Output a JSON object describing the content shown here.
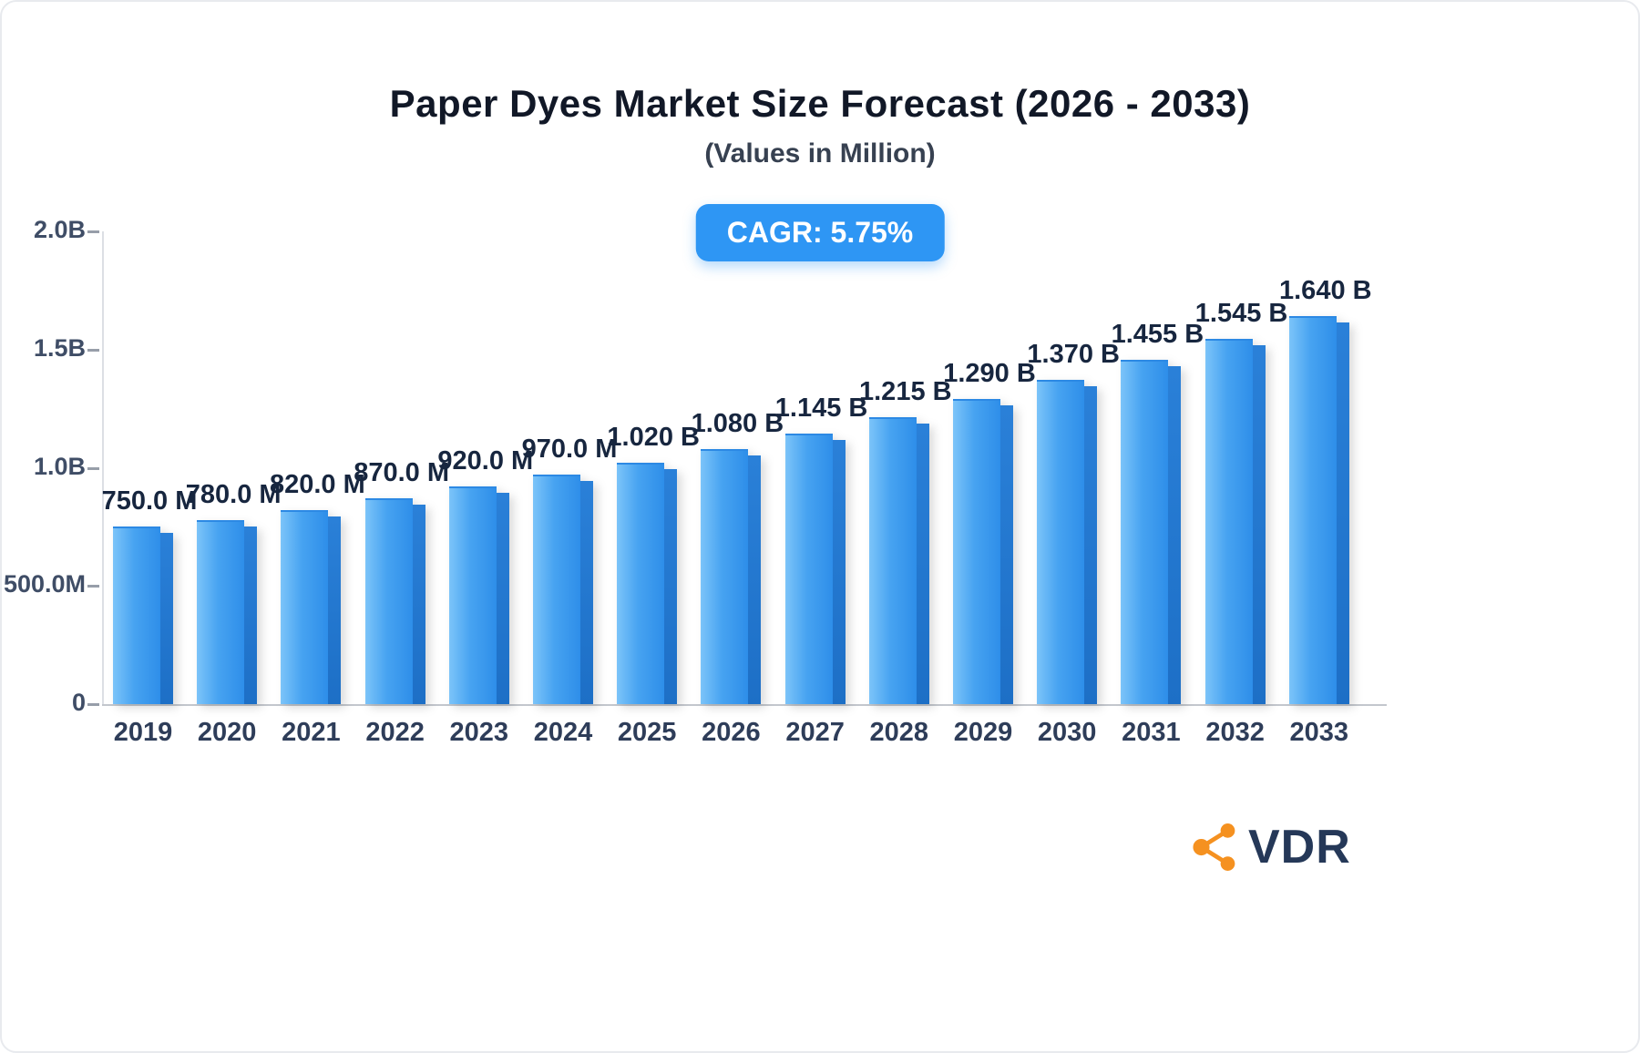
{
  "title": "Paper Dyes Market Size Forecast (2026 - 2033)",
  "subtitle": "(Values in Million)",
  "badge": {
    "label": "CAGR: 5.75%",
    "bg": "#2e96f4",
    "text_color": "#ffffff"
  },
  "logo": {
    "text": "VDR",
    "icon_color": "#f59120",
    "text_color": "#253858"
  },
  "chart_data": {
    "type": "bar",
    "title": "Paper Dyes Market Size Forecast (2026 - 2033)",
    "subtitle": "(Values in Million)",
    "annotation": "CAGR: 5.75%",
    "categories": [
      "2019",
      "2020",
      "2021",
      "2022",
      "2023",
      "2024",
      "2025",
      "2026",
      "2027",
      "2028",
      "2029",
      "2030",
      "2031",
      "2032",
      "2033"
    ],
    "values_million": [
      750,
      780,
      820,
      870,
      920,
      970,
      1020,
      1080,
      1145,
      1215,
      1290,
      1370,
      1455,
      1545,
      1640
    ],
    "value_labels": [
      "750.0 M",
      "780.0 M",
      "820.0 M",
      "870.0 M",
      "920.0 M",
      "970.0 M",
      "1.020 B",
      "1.080 B",
      "1.145 B",
      "1.215 B",
      "1.290 B",
      "1.370 B",
      "1.455 B",
      "1.545 B",
      "1.640 B"
    ],
    "ytick_labels": [
      "2.0B",
      "1.5B",
      "1.0B",
      "500.0M",
      "0"
    ],
    "ytick_values_million": [
      2000,
      1500,
      1000,
      500,
      0
    ],
    "ylim": [
      0,
      2000
    ],
    "xlabel": "",
    "ylabel": "",
    "grid": false,
    "legend": false,
    "bar_color_light": "#7cc4f9",
    "bar_color_dark": "#2e8ee9",
    "bar_side_color": "#1d6fc6"
  }
}
